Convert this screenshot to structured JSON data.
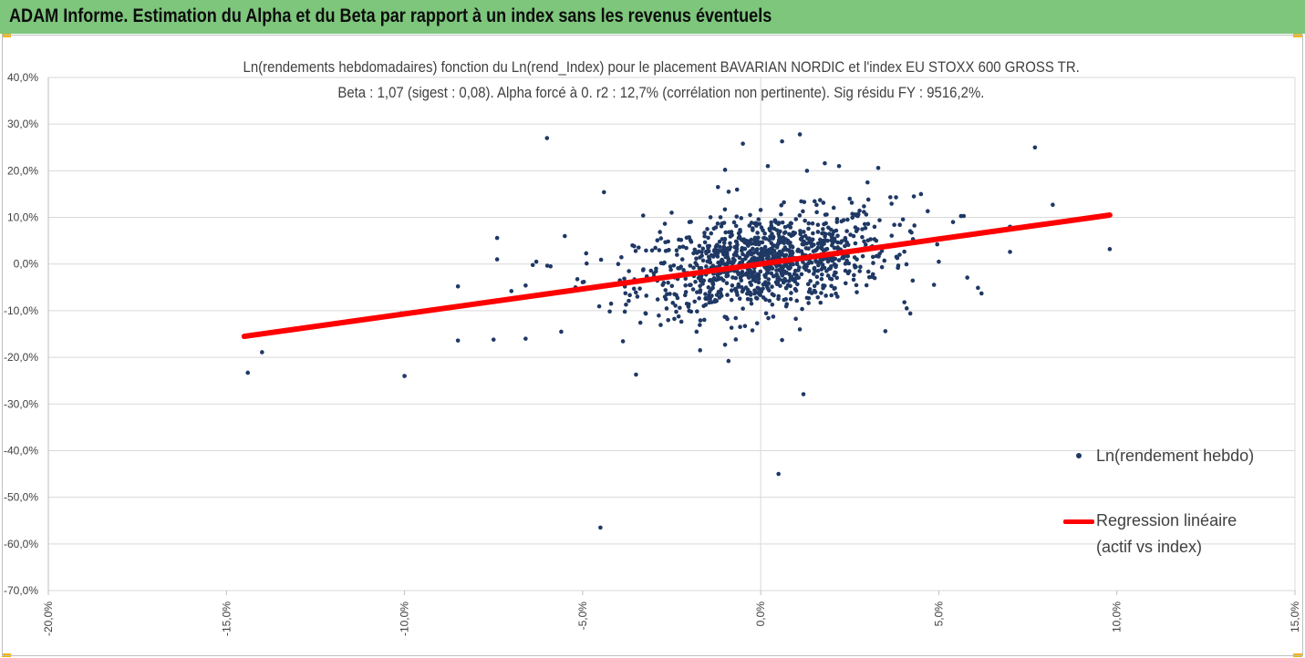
{
  "header": {
    "title": "ADAM Informe. Estimation du Alpha et du Beta par rapport à un index sans les revenus éventuels",
    "background": "#7dc67c",
    "corner_color": "#f4b400"
  },
  "chart_data": {
    "type": "scatter",
    "title_line1": "Ln(rendements hebdomadaires) fonction du Ln(rend_Index) pour le placement BAVARIAN NORDIC et l'index EU STOXX 600 GROSS TR.",
    "title_line2": "Beta : 1,07 (sigest : 0,08). Alpha forcé à 0. r2 : 12,7% (corrélation non pertinente). Sig résidu FY : 9516,2%.",
    "xlim": [
      -20,
      15
    ],
    "ylim": [
      -70,
      40
    ],
    "x_ticks": [
      "-20,0%",
      "-15,0%",
      "-10,0%",
      "-5,0%",
      "0,0%",
      "5,0%",
      "10,0%",
      "15,0%"
    ],
    "x_tick_values": [
      -20,
      -15,
      -10,
      -5,
      0,
      5,
      10,
      15
    ],
    "y_ticks": [
      "40,0%",
      "30,0%",
      "20,0%",
      "10,0%",
      "0,0%",
      "-10,0%",
      "-20,0%",
      "-30,0%",
      "-40,0%",
      "-50,0%",
      "-60,0%",
      "-70,0%"
    ],
    "y_tick_values": [
      40,
      30,
      20,
      10,
      0,
      -10,
      -20,
      -30,
      -40,
      -50,
      -60,
      -70
    ],
    "grid": "horizontal",
    "legend_position": "right",
    "series": [
      {
        "name": "Ln(rendement hebdo)",
        "kind": "scatter",
        "color": "#1f3864",
        "points": [
          [
            -14.4,
            -23.3
          ],
          [
            -14.0,
            -18.9
          ],
          [
            -10.0,
            -24.0
          ],
          [
            -10.1,
            -10.6
          ],
          [
            -9.3,
            -10.0
          ],
          [
            -8.5,
            -16.4
          ],
          [
            -8.5,
            -4.8
          ],
          [
            -7.5,
            -16.2
          ],
          [
            -7.4,
            5.6
          ],
          [
            -7.4,
            1.0
          ],
          [
            -7.0,
            -5.8
          ],
          [
            -6.6,
            -16.0
          ],
          [
            -6.6,
            -4.6
          ],
          [
            -6.4,
            -0.2
          ],
          [
            -6.3,
            0.5
          ],
          [
            -6.0,
            27.0
          ],
          [
            -5.9,
            -0.5
          ],
          [
            -5.5,
            6.0
          ],
          [
            -5.6,
            -14.5
          ],
          [
            -5.2,
            -5.0
          ],
          [
            -4.9,
            2.3
          ],
          [
            -4.5,
            -56.5
          ],
          [
            -4.4,
            15.4
          ],
          [
            -4.2,
            -8.5
          ],
          [
            -4.0,
            0.0
          ],
          [
            -3.6,
            4.0
          ],
          [
            -3.5,
            -23.7
          ],
          [
            -3.3,
            10.4
          ],
          [
            -3.0,
            -2.0
          ],
          [
            -2.8,
            5.5
          ],
          [
            -2.5,
            11.0
          ],
          [
            -2.2,
            1.0
          ],
          [
            -2.0,
            9.0
          ],
          [
            -1.8,
            -14.5
          ],
          [
            -1.5,
            7.5
          ],
          [
            -1.2,
            16.5
          ],
          [
            -1.0,
            20.2
          ],
          [
            -1.0,
            -17.3
          ],
          [
            -0.9,
            15.5
          ],
          [
            -0.5,
            25.8
          ],
          [
            -0.1,
            -12.7
          ],
          [
            0.2,
            21.0
          ],
          [
            0.5,
            -45.0
          ],
          [
            0.6,
            26.3
          ],
          [
            0.6,
            -16.3
          ],
          [
            1.1,
            27.8
          ],
          [
            1.1,
            -14.0
          ],
          [
            1.2,
            -27.9
          ],
          [
            1.3,
            20.0
          ],
          [
            1.8,
            21.6
          ],
          [
            2.2,
            21.0
          ],
          [
            2.5,
            14.0
          ],
          [
            3.0,
            17.5
          ],
          [
            3.3,
            20.6
          ],
          [
            3.5,
            -14.4
          ],
          [
            3.8,
            14.3
          ],
          [
            4.1,
            -9.5
          ],
          [
            4.2,
            -10.6
          ],
          [
            4.3,
            14.5
          ],
          [
            4.5,
            15.0
          ],
          [
            5.0,
            0.5
          ],
          [
            5.4,
            9.0
          ],
          [
            5.7,
            10.3
          ],
          [
            5.8,
            -2.9
          ],
          [
            6.1,
            -5.1
          ],
          [
            6.2,
            -6.3
          ],
          [
            7.0,
            8.0
          ],
          [
            7.0,
            2.6
          ],
          [
            7.7,
            25.0
          ],
          [
            8.2,
            12.7
          ],
          [
            9.8,
            3.2
          ],
          [
            -2.6,
            -4.0
          ],
          [
            -2.1,
            -6.0
          ],
          [
            -1.6,
            -9.0
          ],
          [
            -1.3,
            3.0
          ],
          [
            -0.7,
            -3.0
          ],
          [
            -0.4,
            5.0
          ],
          [
            0.0,
            0.0
          ],
          [
            0.3,
            -2.0
          ],
          [
            0.8,
            3.0
          ],
          [
            1.5,
            -1.0
          ],
          [
            2.0,
            4.0
          ],
          [
            2.7,
            1.0
          ],
          [
            3.2,
            -3.0
          ],
          [
            3.9,
            2.0
          ]
        ],
        "cluster": {
          "n": 1050,
          "center": [
            0.1,
            0.4
          ],
          "spread_x": 1.75,
          "spread_y": 5.0,
          "beta": 1.07,
          "seed": 12345
        }
      },
      {
        "name": "Regression linéaire",
        "name_line2": "(actif vs index)",
        "kind": "line",
        "color": "#ff0000",
        "x": [
          -14.5,
          9.8
        ],
        "y": [
          -15.5,
          10.5
        ]
      }
    ]
  }
}
